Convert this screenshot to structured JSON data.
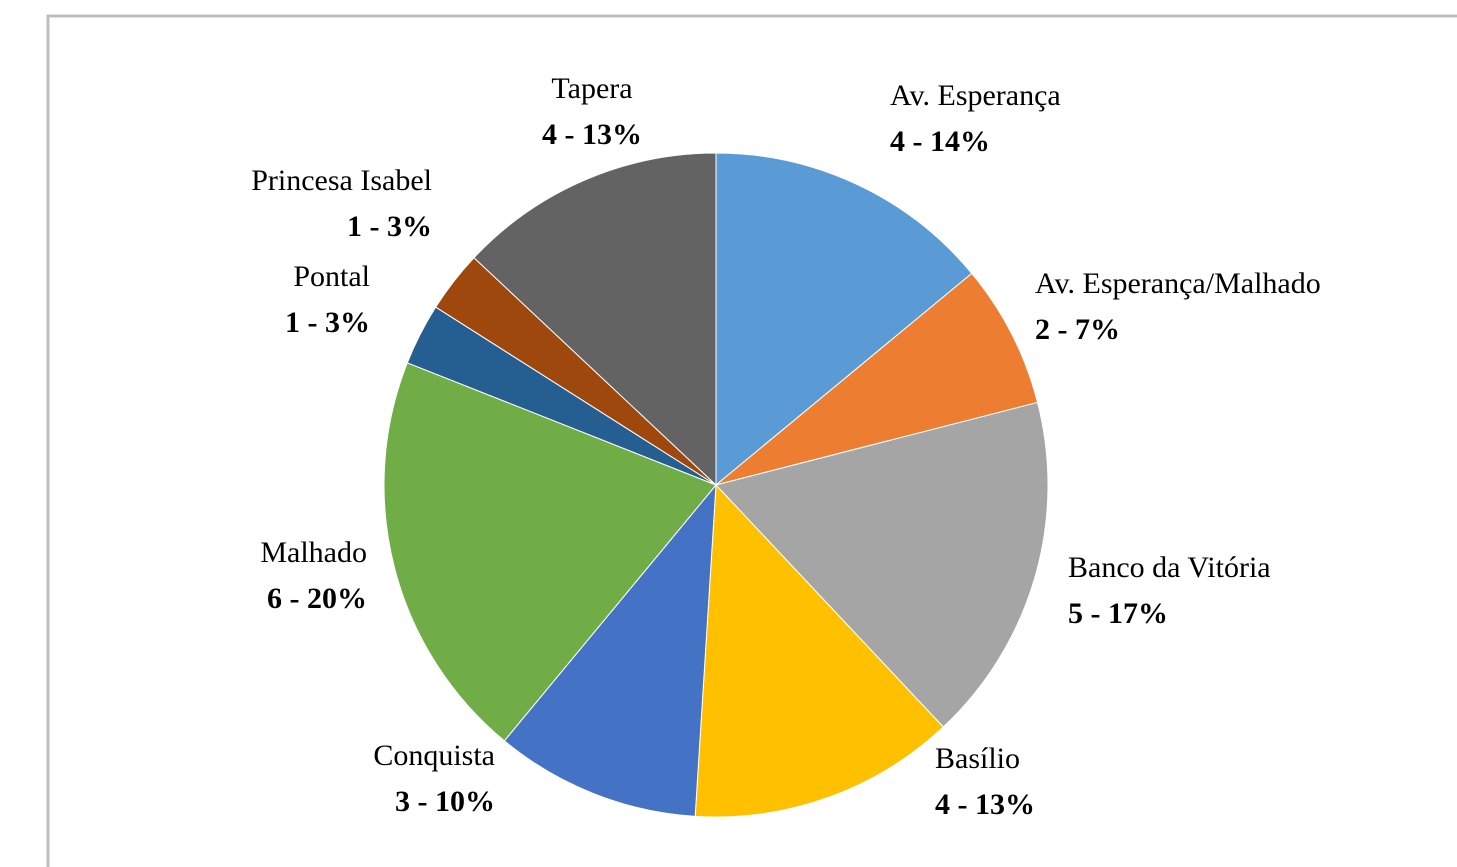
{
  "chart_data": {
    "type": "pie",
    "categories": [
      "Av. Esperança",
      "Av. Esperança/Malhado",
      "Banco da Vitória",
      "Basílio",
      "Conquista",
      "Malhado",
      "Pontal",
      "Princesa Isabel",
      "Tapera"
    ],
    "values": [
      14,
      7,
      17,
      13,
      10,
      20,
      3,
      3,
      13
    ],
    "value_labels": [
      "4 - 14%",
      "2 - 7%",
      "5 - 17%",
      "4 - 13%",
      "3 - 10%",
      "6 - 20%",
      "1 - 3%",
      "1 - 3%",
      "4 - 13%"
    ],
    "colors": [
      "#5b9bd5",
      "#ed7d31",
      "#a5a5a5",
      "#ffc000",
      "#4472c4",
      "#70ad47",
      "#255e91",
      "#9e480e",
      "#636363"
    ]
  }
}
